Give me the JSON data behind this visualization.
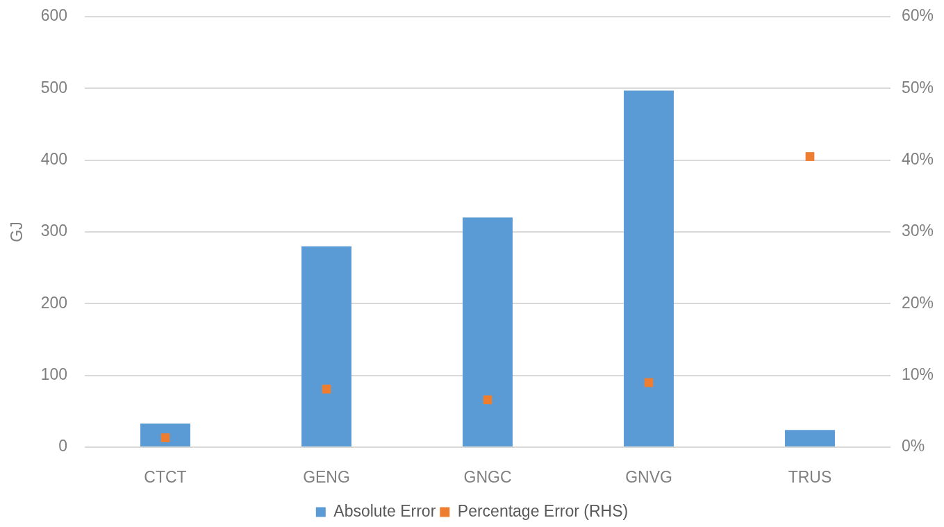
{
  "chart_data": {
    "type": "bar",
    "ylabel": "GJ",
    "categories": [
      "CTCT",
      "GENG",
      "GNGC",
      "GNVG",
      "TRUS"
    ],
    "series": [
      {
        "name": "Absolute Error",
        "color": "#5b9bd5",
        "values": [
          33,
          280,
          320,
          497,
          24
        ]
      },
      {
        "name": "Percentage Error (RHS)",
        "type": "scatter",
        "marker": "square",
        "axis": "y2",
        "color": "#ed7d31",
        "values": [
          1.3,
          8.1,
          6.6,
          9.0,
          40.5
        ]
      }
    ],
    "ylim": [
      0,
      600
    ],
    "yticks": [
      0,
      100,
      200,
      300,
      400,
      500,
      600
    ],
    "y2lim": [
      0,
      60
    ],
    "y2ticks": [
      {
        "value": 0,
        "label": "0%"
      },
      {
        "value": 10,
        "label": "10%"
      },
      {
        "value": 20,
        "label": "20%"
      },
      {
        "value": 30,
        "label": "30%"
      },
      {
        "value": 40,
        "label": "40%"
      },
      {
        "value": 50,
        "label": "50%"
      },
      {
        "value": 60,
        "label": "60%"
      }
    ],
    "grid": "y",
    "legend": "bottom"
  }
}
